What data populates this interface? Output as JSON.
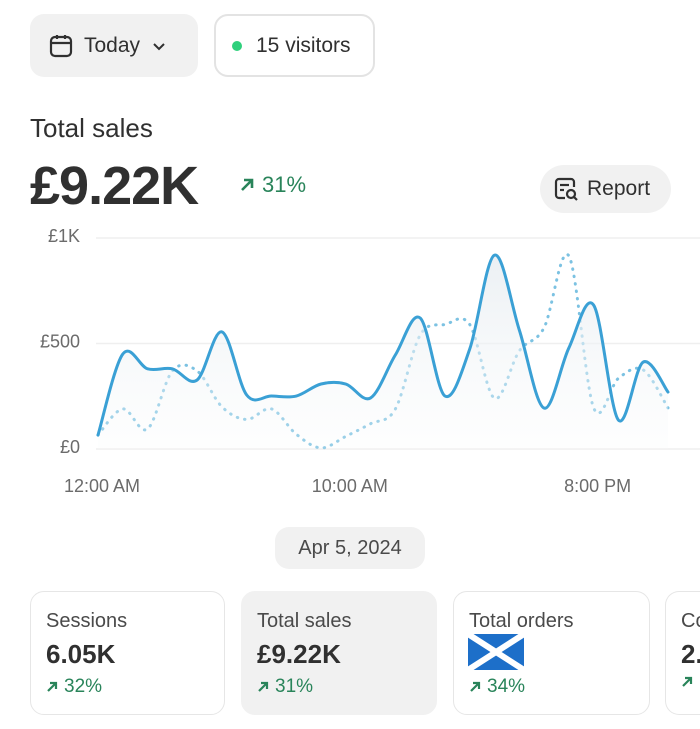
{
  "filters": {
    "date": "Today",
    "visitors": "15 visitors"
  },
  "header": {
    "title": "Total sales",
    "value": "£9.22K",
    "change": "31%",
    "report": "Report"
  },
  "chart_data": {
    "type": "line",
    "x": [
      0,
      1,
      2,
      3,
      4,
      5,
      6,
      7,
      8,
      9,
      10,
      11,
      12,
      13,
      14,
      15,
      16,
      17,
      18,
      19,
      20,
      21,
      22,
      23
    ],
    "xlim": [
      0,
      23
    ],
    "xticks": [
      {
        "value": 0,
        "label": "12:00 AM"
      },
      {
        "value": 10,
        "label": "10:00 AM"
      },
      {
        "value": 20,
        "label": "8:00 PM"
      }
    ],
    "ylim": [
      0,
      1000
    ],
    "yticks": [
      {
        "value": 0,
        "label": "£0"
      },
      {
        "value": 500,
        "label": "£500"
      },
      {
        "value": 1000,
        "label": "£1K"
      }
    ],
    "grid": true,
    "series": [
      {
        "color": "#3aa0d5",
        "style": "solid",
        "area": true,
        "values": [
          66,
          450,
          380,
          380,
          327,
          555,
          256,
          251,
          251,
          308,
          308,
          242,
          446,
          621,
          251,
          474,
          919,
          564,
          194,
          479,
          682,
          137,
          412,
          270
        ]
      },
      {
        "color": "#7cc2e2",
        "style": "dotted",
        "values": [
          66,
          190,
          95,
          370,
          370,
          200,
          140,
          190,
          70,
          5,
          60,
          120,
          190,
          540,
          590,
          590,
          240,
          465,
          575,
          915,
          195,
          335,
          375,
          195
        ]
      }
    ]
  },
  "date_pill": "Apr 5, 2024",
  "cards": [
    {
      "label": "Sessions",
      "value": "6.05K",
      "change": "32%"
    },
    {
      "label": "Total sales",
      "value": "£9.22K",
      "change": "31%"
    },
    {
      "label": "Total orders",
      "change": "34%"
    },
    {
      "label": "Co",
      "value": "2."
    }
  ]
}
